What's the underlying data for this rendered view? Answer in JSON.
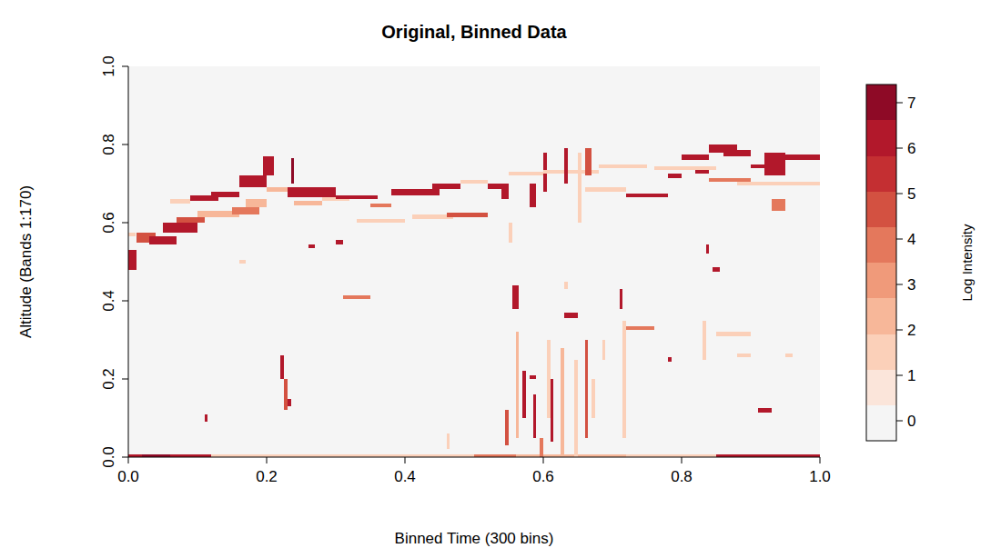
{
  "chart_data": {
    "type": "heatmap",
    "title": "Original, Binned Data",
    "x_label": "Binned Time (300 bins)",
    "y_label": "Altitude (Bands 1:170)",
    "xlim": [
      0,
      1
    ],
    "ylim": [
      0,
      1
    ],
    "xticks": [
      {
        "value": 0,
        "label": "0.0"
      },
      {
        "value": 0.2,
        "label": "0.2"
      },
      {
        "value": 0.4,
        "label": "0.4"
      },
      {
        "value": 0.6,
        "label": "0.6"
      },
      {
        "value": 0.8,
        "label": "0.8"
      },
      {
        "value": 1,
        "label": "1.0"
      }
    ],
    "yticks": [
      {
        "value": 0,
        "label": "0.0"
      },
      {
        "value": 0.2,
        "label": "0.2"
      },
      {
        "value": 0.4,
        "label": "0.4"
      },
      {
        "value": 0.6,
        "label": "0.6"
      },
      {
        "value": 0.8,
        "label": "0.8"
      },
      {
        "value": 1,
        "label": "1.0"
      }
    ],
    "colorbar": {
      "label": "Log Intensity",
      "breaks": [
        -0.44,
        0.34,
        1.13,
        1.91,
        2.7,
        3.48,
        4.26,
        5.05,
        5.83,
        6.62,
        7.4
      ],
      "colors": [
        "#f5f5f5",
        "#fbe5da",
        "#fbd0b9",
        "#f7b799",
        "#f09a7a",
        "#e4785c",
        "#d35141",
        "#c42f32",
        "#b2182b",
        "#8e0a26"
      ],
      "ticks": [
        0,
        1,
        2,
        3,
        4,
        5,
        6,
        7
      ]
    },
    "cells": [
      {
        "x0": 0,
        "x1": 0.12,
        "y0": 0,
        "y1": 0.006,
        "value": 6
      },
      {
        "x0": 0.12,
        "x1": 0.5,
        "y0": 0,
        "y1": 0.006,
        "value": 1.5
      },
      {
        "x0": 0.5,
        "x1": 0.56,
        "y0": 0,
        "y1": 0.006,
        "value": 4
      },
      {
        "x0": 0.56,
        "x1": 0.72,
        "y0": 0,
        "y1": 0.006,
        "value": 2
      },
      {
        "x0": 0.72,
        "x1": 0.85,
        "y0": 0,
        "y1": 0.006,
        "value": 1.5
      },
      {
        "x0": 0.85,
        "x1": 1,
        "y0": 0,
        "y1": 0.006,
        "value": 6
      },
      {
        "x0": 0.02,
        "x1": 0.06,
        "y0": 0,
        "y1": 0.006,
        "value": 7
      },
      {
        "x0": 0,
        "x1": 0.012,
        "y0": 0.48,
        "y1": 0.53,
        "value": 6
      },
      {
        "x0": 0,
        "x1": 0.01,
        "y0": 0.565,
        "y1": 0.575,
        "value": 1.5
      },
      {
        "x0": 0.012,
        "x1": 0.04,
        "y0": 0.55,
        "y1": 0.575,
        "value": 5
      },
      {
        "x0": 0.03,
        "x1": 0.07,
        "y0": 0.545,
        "y1": 0.565,
        "value": 6
      },
      {
        "x0": 0.05,
        "x1": 0.1,
        "y0": 0.575,
        "y1": 0.6,
        "value": 6
      },
      {
        "x0": 0.07,
        "x1": 0.11,
        "y0": 0.6,
        "y1": 0.615,
        "value": 5
      },
      {
        "x0": 0.06,
        "x1": 0.09,
        "y0": 0.65,
        "y1": 0.66,
        "value": 1.5
      },
      {
        "x0": 0.09,
        "x1": 0.13,
        "y0": 0.655,
        "y1": 0.67,
        "value": 6
      },
      {
        "x0": 0.1,
        "x1": 0.16,
        "y0": 0.615,
        "y1": 0.63,
        "value": 2
      },
      {
        "x0": 0.12,
        "x1": 0.16,
        "y0": 0.665,
        "y1": 0.68,
        "value": 6
      },
      {
        "x0": 0.15,
        "x1": 0.19,
        "y0": 0.62,
        "y1": 0.64,
        "value": 4
      },
      {
        "x0": 0.16,
        "x1": 0.2,
        "y0": 0.69,
        "y1": 0.72,
        "value": 6
      },
      {
        "x0": 0.17,
        "x1": 0.2,
        "y0": 0.64,
        "y1": 0.66,
        "value": 2
      },
      {
        "x0": 0.195,
        "x1": 0.21,
        "y0": 0.72,
        "y1": 0.77,
        "value": 6
      },
      {
        "x0": 0.2,
        "x1": 0.23,
        "y0": 0.68,
        "y1": 0.69,
        "value": 2
      },
      {
        "x0": 0.235,
        "x1": 0.24,
        "y0": 0.7,
        "y1": 0.765,
        "value": 7
      },
      {
        "x0": 0.23,
        "x1": 0.3,
        "y0": 0.665,
        "y1": 0.69,
        "value": 6
      },
      {
        "x0": 0.24,
        "x1": 0.28,
        "y0": 0.645,
        "y1": 0.655,
        "value": 2
      },
      {
        "x0": 0.28,
        "x1": 0.32,
        "y0": 0.655,
        "y1": 0.665,
        "value": 1.5
      },
      {
        "x0": 0.3,
        "x1": 0.36,
        "y0": 0.66,
        "y1": 0.67,
        "value": 6
      },
      {
        "x0": 0.33,
        "x1": 0.4,
        "y0": 0.6,
        "y1": 0.61,
        "value": 1.5
      },
      {
        "x0": 0.35,
        "x1": 0.38,
        "y0": 0.64,
        "y1": 0.65,
        "value": 4
      },
      {
        "x0": 0.38,
        "x1": 0.45,
        "y0": 0.67,
        "y1": 0.685,
        "value": 6
      },
      {
        "x0": 0.44,
        "x1": 0.48,
        "y0": 0.685,
        "y1": 0.7,
        "value": 6
      },
      {
        "x0": 0.41,
        "x1": 0.47,
        "y0": 0.61,
        "y1": 0.62,
        "value": 1.5
      },
      {
        "x0": 0.46,
        "x1": 0.52,
        "y0": 0.615,
        "y1": 0.625,
        "value": 5
      },
      {
        "x0": 0.48,
        "x1": 0.52,
        "y0": 0.7,
        "y1": 0.71,
        "value": 1.5
      },
      {
        "x0": 0.52,
        "x1": 0.55,
        "y0": 0.685,
        "y1": 0.7,
        "value": 6
      },
      {
        "x0": 0.54,
        "x1": 0.55,
        "y0": 0.66,
        "y1": 0.7,
        "value": 6
      },
      {
        "x0": 0.55,
        "x1": 0.6,
        "y0": 0.72,
        "y1": 0.73,
        "value": 1.5
      },
      {
        "x0": 0.58,
        "x1": 0.59,
        "y0": 0.64,
        "y1": 0.7,
        "value": 6
      },
      {
        "x0": 0.6,
        "x1": 0.605,
        "y0": 0.68,
        "y1": 0.78,
        "value": 6
      },
      {
        "x0": 0.6,
        "x1": 0.68,
        "y0": 0.725,
        "y1": 0.735,
        "value": 1.5
      },
      {
        "x0": 0.63,
        "x1": 0.635,
        "y0": 0.7,
        "y1": 0.79,
        "value": 6
      },
      {
        "x0": 0.66,
        "x1": 0.67,
        "y0": 0.72,
        "y1": 0.79,
        "value": 5
      },
      {
        "x0": 0.66,
        "x1": 0.72,
        "y0": 0.68,
        "y1": 0.69,
        "value": 1.5
      },
      {
        "x0": 0.68,
        "x1": 0.75,
        "y0": 0.74,
        "y1": 0.75,
        "value": 1.5
      },
      {
        "x0": 0.72,
        "x1": 0.78,
        "y0": 0.665,
        "y1": 0.675,
        "value": 6
      },
      {
        "x0": 0.76,
        "x1": 0.85,
        "y0": 0.735,
        "y1": 0.745,
        "value": 1.5
      },
      {
        "x0": 0.78,
        "x1": 0.8,
        "y0": 0.715,
        "y1": 0.725,
        "value": 6
      },
      {
        "x0": 0.8,
        "x1": 0.84,
        "y0": 0.76,
        "y1": 0.775,
        "value": 6
      },
      {
        "x0": 0.84,
        "x1": 0.88,
        "y0": 0.78,
        "y1": 0.8,
        "value": 6
      },
      {
        "x0": 0.86,
        "x1": 0.9,
        "y0": 0.77,
        "y1": 0.785,
        "value": 6
      },
      {
        "x0": 0.84,
        "x1": 0.9,
        "y0": 0.705,
        "y1": 0.715,
        "value": 4
      },
      {
        "x0": 0.82,
        "x1": 0.84,
        "y0": 0.725,
        "y1": 0.735,
        "value": 6
      },
      {
        "x0": 0.88,
        "x1": 0.94,
        "y0": 0.695,
        "y1": 0.705,
        "value": 1.5
      },
      {
        "x0": 0.9,
        "x1": 0.92,
        "y0": 0.74,
        "y1": 0.75,
        "value": 6
      },
      {
        "x0": 0.92,
        "x1": 0.95,
        "y0": 0.72,
        "y1": 0.78,
        "value": 6
      },
      {
        "x0": 0.93,
        "x1": 0.95,
        "y0": 0.63,
        "y1": 0.66,
        "value": 4
      },
      {
        "x0": 0.95,
        "x1": 1,
        "y0": 0.76,
        "y1": 0.775,
        "value": 6
      },
      {
        "x0": 0.94,
        "x1": 1,
        "y0": 0.695,
        "y1": 0.705,
        "value": 1.5
      },
      {
        "x0": 0.11,
        "x1": 0.115,
        "y0": 0.09,
        "y1": 0.11,
        "value": 6
      },
      {
        "x0": 0.16,
        "x1": 0.17,
        "y0": 0.495,
        "y1": 0.505,
        "value": 1.5
      },
      {
        "x0": 0.22,
        "x1": 0.225,
        "y0": 0.2,
        "y1": 0.26,
        "value": 6
      },
      {
        "x0": 0.225,
        "x1": 0.23,
        "y0": 0.12,
        "y1": 0.2,
        "value": 5
      },
      {
        "x0": 0.23,
        "x1": 0.235,
        "y0": 0.13,
        "y1": 0.15,
        "value": 6
      },
      {
        "x0": 0.26,
        "x1": 0.27,
        "y0": 0.535,
        "y1": 0.545,
        "value": 6
      },
      {
        "x0": 0.3,
        "x1": 0.31,
        "y0": 0.545,
        "y1": 0.555,
        "value": 6
      },
      {
        "x0": 0.31,
        "x1": 0.35,
        "y0": 0.405,
        "y1": 0.415,
        "value": 4
      },
      {
        "x0": 0.46,
        "x1": 0.465,
        "y0": 0.02,
        "y1": 0.06,
        "value": 1.5
      },
      {
        "x0": 0.555,
        "x1": 0.565,
        "y0": 0.38,
        "y1": 0.44,
        "value": 6
      },
      {
        "x0": 0.56,
        "x1": 0.565,
        "y0": 0.05,
        "y1": 0.32,
        "value": 2
      },
      {
        "x0": 0.545,
        "x1": 0.55,
        "y0": 0.03,
        "y1": 0.12,
        "value": 5
      },
      {
        "x0": 0.57,
        "x1": 0.575,
        "y0": 0.1,
        "y1": 0.22,
        "value": 6
      },
      {
        "x0": 0.58,
        "x1": 0.59,
        "y0": 0.2,
        "y1": 0.21,
        "value": 6
      },
      {
        "x0": 0.585,
        "x1": 0.59,
        "y0": 0.05,
        "y1": 0.16,
        "value": 6
      },
      {
        "x0": 0.595,
        "x1": 0.6,
        "y0": 0,
        "y1": 0.05,
        "value": 4
      },
      {
        "x0": 0.605,
        "x1": 0.61,
        "y0": 0.1,
        "y1": 0.3,
        "value": 1.5
      },
      {
        "x0": 0.61,
        "x1": 0.615,
        "y0": 0.04,
        "y1": 0.2,
        "value": 6
      },
      {
        "x0": 0.625,
        "x1": 0.63,
        "y0": 0,
        "y1": 0.28,
        "value": 2
      },
      {
        "x0": 0.63,
        "x1": 0.635,
        "y0": 0.43,
        "y1": 0.45,
        "value": 1.5
      },
      {
        "x0": 0.63,
        "x1": 0.65,
        "y0": 0.355,
        "y1": 0.37,
        "value": 6
      },
      {
        "x0": 0.645,
        "x1": 0.65,
        "y0": 0,
        "y1": 0.25,
        "value": 1.5
      },
      {
        "x0": 0.66,
        "x1": 0.665,
        "y0": 0.05,
        "y1": 0.3,
        "value": 5
      },
      {
        "x0": 0.67,
        "x1": 0.675,
        "y0": 0.1,
        "y1": 0.2,
        "value": 1.5
      },
      {
        "x0": 0.685,
        "x1": 0.69,
        "y0": 0.25,
        "y1": 0.3,
        "value": 1.5
      },
      {
        "x0": 0.71,
        "x1": 0.715,
        "y0": 0.38,
        "y1": 0.43,
        "value": 6
      },
      {
        "x0": 0.715,
        "x1": 0.72,
        "y0": 0.05,
        "y1": 0.35,
        "value": 1.5
      },
      {
        "x0": 0.72,
        "x1": 0.76,
        "y0": 0.325,
        "y1": 0.335,
        "value": 4
      },
      {
        "x0": 0.78,
        "x1": 0.785,
        "y0": 0.245,
        "y1": 0.255,
        "value": 6
      },
      {
        "x0": 0.835,
        "x1": 0.84,
        "y0": 0.52,
        "y1": 0.545,
        "value": 6
      },
      {
        "x0": 0.845,
        "x1": 0.855,
        "y0": 0.475,
        "y1": 0.485,
        "value": 6
      },
      {
        "x0": 0.83,
        "x1": 0.835,
        "y0": 0.25,
        "y1": 0.35,
        "value": 1.5
      },
      {
        "x0": 0.85,
        "x1": 0.9,
        "y0": 0.31,
        "y1": 0.32,
        "value": 1.5
      },
      {
        "x0": 0.88,
        "x1": 0.9,
        "y0": 0.255,
        "y1": 0.265,
        "value": 1.5
      },
      {
        "x0": 0.91,
        "x1": 0.93,
        "y0": 0.115,
        "y1": 0.125,
        "value": 6
      },
      {
        "x0": 0.95,
        "x1": 0.96,
        "y0": 0.255,
        "y1": 0.265,
        "value": 1.5
      },
      {
        "x0": 0.55,
        "x1": 0.555,
        "y0": 0.55,
        "y1": 0.6,
        "value": 1.5
      },
      {
        "x0": 0.65,
        "x1": 0.655,
        "y0": 0.6,
        "y1": 0.78,
        "value": 1.5
      }
    ]
  }
}
